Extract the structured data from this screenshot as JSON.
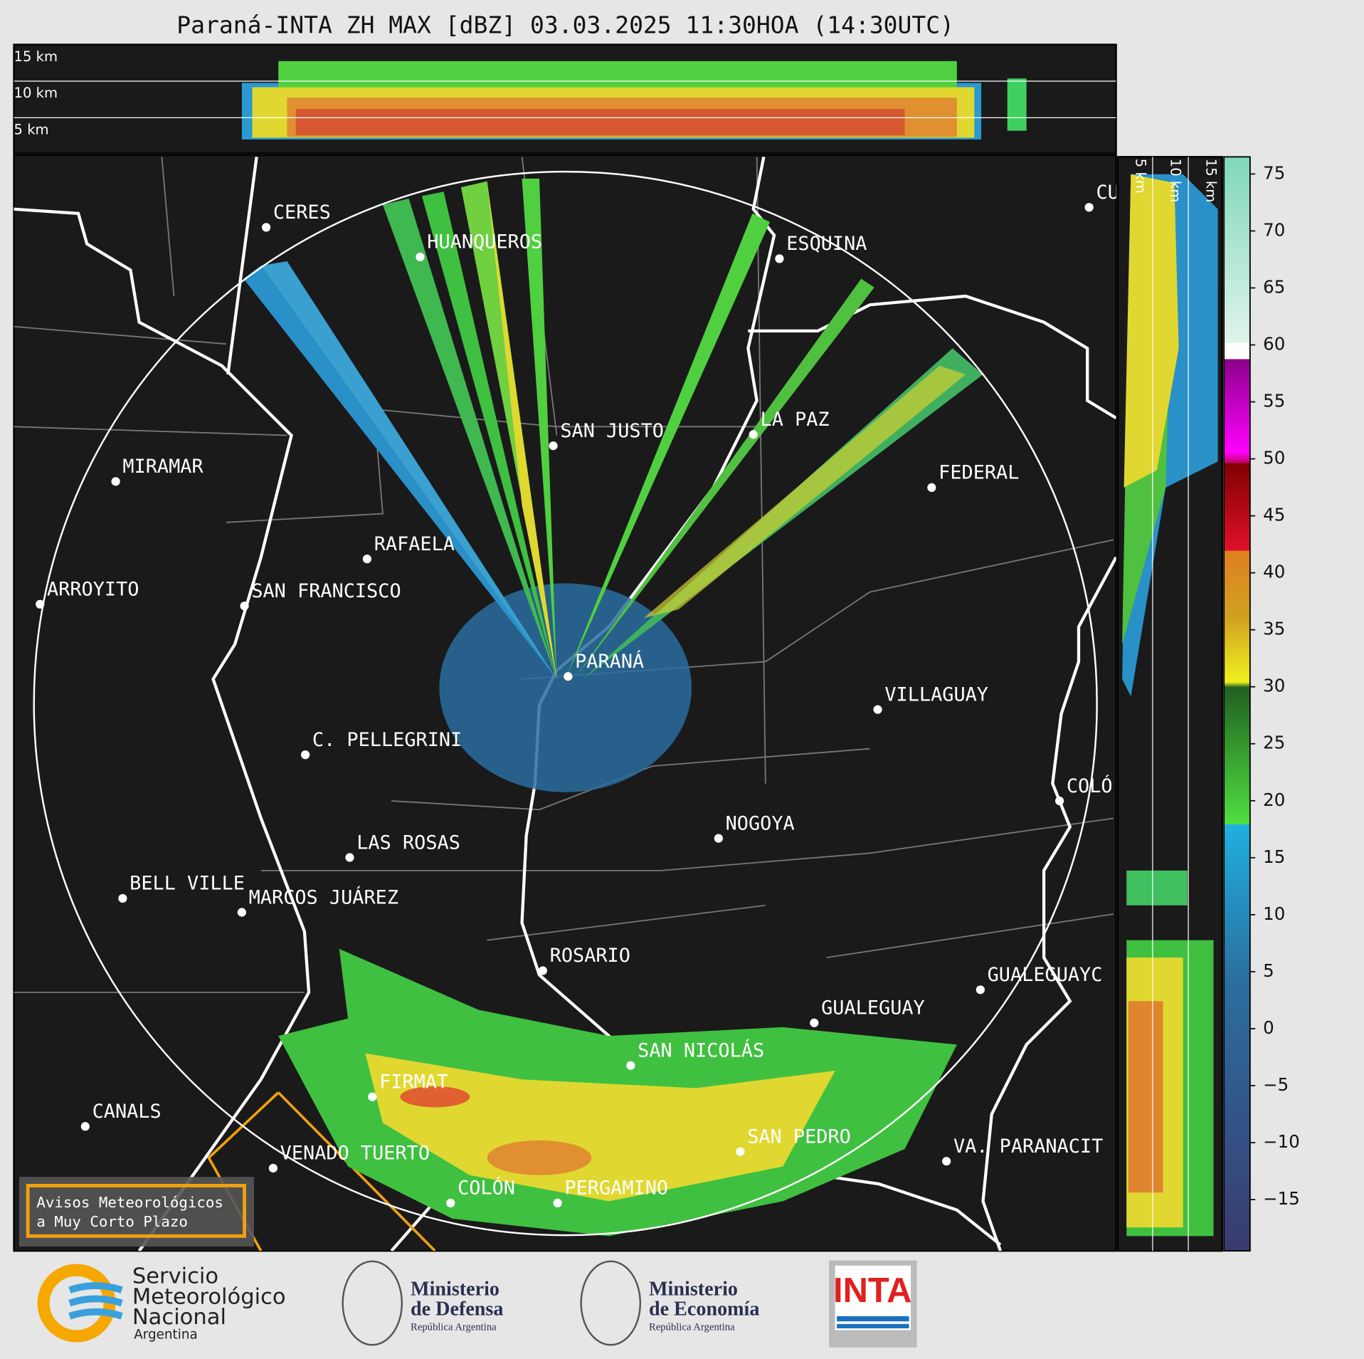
{
  "title": "Paraná-INTA ZH MAX [dBZ] 03.03.2025 11:30HOA (14:30UTC)",
  "top_profile_labels": [
    "15 km",
    "10 km",
    "5 km"
  ],
  "side_profile_labels": [
    "5 km",
    "10 km",
    "15 km"
  ],
  "cities": [
    "CERES",
    "HUANQUEROS",
    "ESQUINA",
    "CU",
    "SAN JUSTO",
    "LA PAZ",
    "MIRAMAR",
    "FEDERAL",
    "RAFAELA",
    "ARROYITO",
    "SAN FRANCISCO",
    "PARANÁ",
    "VILLAGUAY",
    "C. PELLEGRINI",
    "COLÓ",
    "NOGOYA",
    "LAS ROSAS",
    "BELL VILLE",
    "MARCOS JUÁREZ",
    "ROSARIO",
    "GUALEGUAYC",
    "GUALEGUAY",
    "SAN NICOLÁS",
    "FIRMAT",
    "CANALS",
    "SAN PEDRO",
    "VA. PARANACIT",
    "VENADO TUERTO",
    "COLÓN",
    "PERGAMINO"
  ],
  "warning_box": [
    "Avisos Meteorológicos",
    "a Muy Corto Plazo"
  ],
  "colorbar": {
    "lim": [
      -19.5,
      76.5
    ],
    "ticks": [
      75,
      70,
      65,
      60,
      55,
      50,
      45,
      40,
      35,
      30,
      25,
      20,
      15,
      10,
      5,
      0,
      {
        "value": -5,
        "label": "−5"
      },
      {
        "value": -10,
        "label": "−10"
      },
      {
        "value": -15,
        "label": "−15"
      }
    ]
  },
  "logos": {
    "smn": [
      "Servicio",
      "Meteorológico",
      "Nacional",
      "Argentina"
    ],
    "defensa": [
      "Ministerio",
      "de Defensa",
      "República Argentina"
    ],
    "economia": [
      "Ministerio",
      "de Economía",
      "República Argentina"
    ],
    "inta": "INTA"
  }
}
